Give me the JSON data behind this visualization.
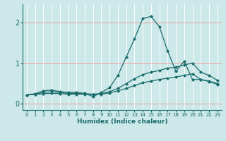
{
  "xlabel": "Humidex (Indice chaleur)",
  "bg_color": "#cce8e8",
  "line_color": "#1a6b6b",
  "grid_color_x": "#ffffff",
  "grid_color_y": "#f0a0a0",
  "xlim": [
    -0.5,
    23.5
  ],
  "ylim": [
    -0.15,
    2.45
  ],
  "xticks": [
    0,
    1,
    2,
    3,
    4,
    5,
    6,
    7,
    8,
    9,
    10,
    11,
    12,
    13,
    14,
    15,
    16,
    17,
    18,
    19,
    20,
    21,
    22,
    23
  ],
  "yticks": [
    0,
    1,
    2
  ],
  "line1_x": [
    0,
    1,
    2,
    3,
    4,
    5,
    6,
    7,
    8,
    9,
    10,
    11,
    12,
    13,
    14,
    15,
    16,
    17,
    18,
    19,
    20,
    21,
    22,
    23
  ],
  "line1_y": [
    0.22,
    0.25,
    0.32,
    0.34,
    0.3,
    0.28,
    0.28,
    0.26,
    0.18,
    0.28,
    0.4,
    0.7,
    1.15,
    1.6,
    2.1,
    2.15,
    1.9,
    1.3,
    0.8,
    1.05,
    0.6,
    0.6,
    0.55,
    0.48
  ],
  "line2_x": [
    0,
    1,
    2,
    3,
    4,
    5,
    6,
    7,
    8,
    9,
    10,
    11,
    12,
    13,
    14,
    15,
    16,
    17,
    18,
    19,
    20,
    21,
    22,
    23
  ],
  "line2_y": [
    0.22,
    0.24,
    0.28,
    0.3,
    0.28,
    0.26,
    0.26,
    0.25,
    0.24,
    0.25,
    0.3,
    0.38,
    0.5,
    0.62,
    0.72,
    0.78,
    0.82,
    0.88,
    0.9,
    0.96,
    1.0,
    0.78,
    0.7,
    0.58
  ],
  "line3_x": [
    0,
    1,
    2,
    3,
    4,
    5,
    6,
    7,
    8,
    9,
    10,
    11,
    12,
    13,
    14,
    15,
    16,
    17,
    18,
    19,
    20,
    21,
    22,
    23
  ],
  "line3_y": [
    0.22,
    0.23,
    0.25,
    0.26,
    0.25,
    0.24,
    0.24,
    0.24,
    0.23,
    0.24,
    0.27,
    0.32,
    0.38,
    0.45,
    0.52,
    0.56,
    0.6,
    0.63,
    0.66,
    0.7,
    0.74,
    0.6,
    0.56,
    0.5
  ]
}
